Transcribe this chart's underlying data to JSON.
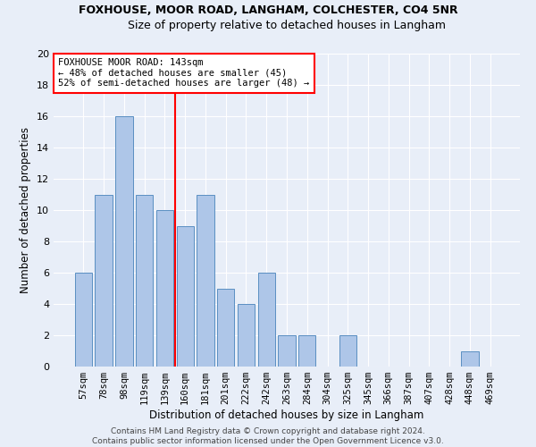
{
  "title1": "FOXHOUSE, MOOR ROAD, LANGHAM, COLCHESTER, CO4 5NR",
  "title2": "Size of property relative to detached houses in Langham",
  "xlabel": "Distribution of detached houses by size in Langham",
  "ylabel": "Number of detached properties",
  "footer1": "Contains HM Land Registry data © Crown copyright and database right 2024.",
  "footer2": "Contains public sector information licensed under the Open Government Licence v3.0.",
  "annotation_line1": "FOXHOUSE MOOR ROAD: 143sqm",
  "annotation_line2": "← 48% of detached houses are smaller (45)",
  "annotation_line3": "52% of semi-detached houses are larger (48) →",
  "bar_labels": [
    "57sqm",
    "78sqm",
    "98sqm",
    "119sqm",
    "139sqm",
    "160sqm",
    "181sqm",
    "201sqm",
    "222sqm",
    "242sqm",
    "263sqm",
    "284sqm",
    "304sqm",
    "325sqm",
    "345sqm",
    "366sqm",
    "387sqm",
    "407sqm",
    "428sqm",
    "448sqm",
    "469sqm"
  ],
  "bar_values": [
    6,
    11,
    16,
    11,
    10,
    9,
    11,
    5,
    4,
    6,
    2,
    2,
    0,
    2,
    0,
    0,
    0,
    0,
    0,
    1,
    0
  ],
  "bar_color": "#aec6e8",
  "bar_edgecolor": "#5a8fc2",
  "vline_x": 4.5,
  "vline_color": "red",
  "ylim": [
    0,
    20
  ],
  "yticks": [
    0,
    2,
    4,
    6,
    8,
    10,
    12,
    14,
    16,
    18,
    20
  ],
  "bg_color": "#e8eef8",
  "grid_color": "#ffffff",
  "annotation_box_edgecolor": "red",
  "annotation_box_facecolor": "#ffffff",
  "title1_fontsize": 9,
  "title2_fontsize": 9,
  "xlabel_fontsize": 8.5,
  "ylabel_fontsize": 8.5,
  "tick_fontsize": 7.5,
  "footer_fontsize": 6.5,
  "annot_fontsize": 7.5
}
